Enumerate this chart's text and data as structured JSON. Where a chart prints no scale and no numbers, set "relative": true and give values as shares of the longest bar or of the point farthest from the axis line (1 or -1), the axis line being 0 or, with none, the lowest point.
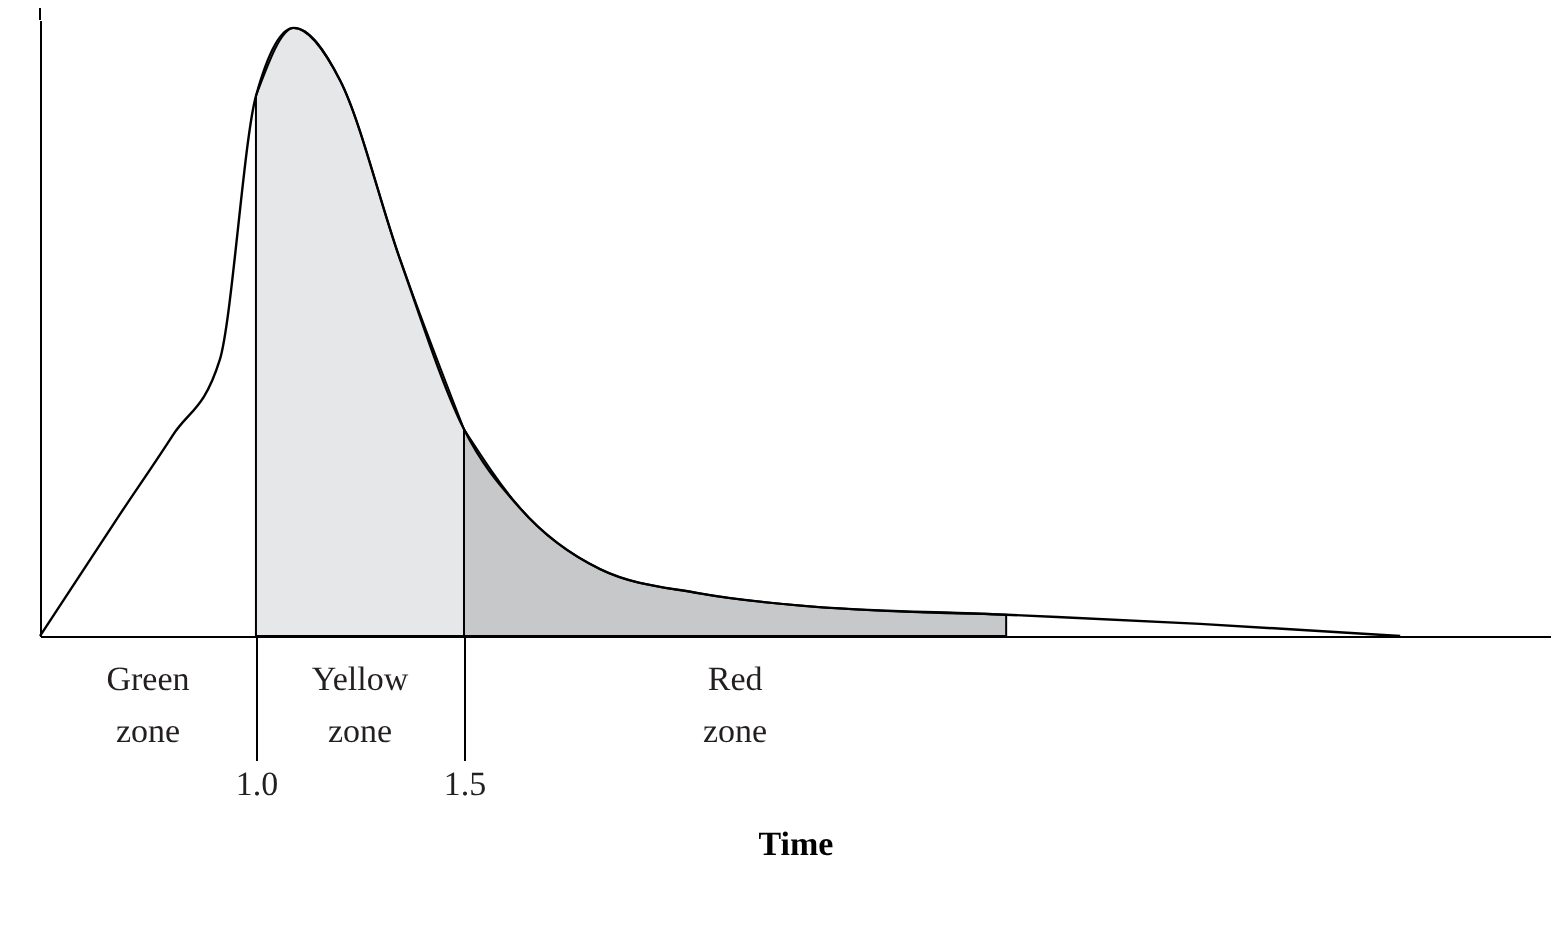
{
  "chart_data": {
    "type": "line",
    "relative": true,
    "xlabel": "Time",
    "x": [
      0.481,
      0.673,
      0.8,
      0.913,
      1.0,
      1.091,
      1.202,
      1.346,
      1.5,
      1.635,
      1.827,
      2.067,
      2.308,
      2.803,
      3.269,
      3.75
    ],
    "series": [
      {
        "type": "area",
        "color": "#e6e7e8",
        "x": [
          1.0,
          1.091,
          1.202,
          1.346,
          1.5
        ],
        "values": [
          0.888,
          1.0,
          0.914,
          0.62,
          0.34
        ]
      },
      {
        "type": "area",
        "color": "#c7c8ca",
        "x": [
          1.5,
          1.635,
          1.827,
          2.067,
          2.308,
          2.803
        ],
        "values": [
          0.34,
          0.21,
          0.11,
          0.07,
          0.05,
          0.035
        ]
      },
      {
        "color": "#000000",
        "values": [
          0,
          0.2,
          0.33,
          0.454,
          0.888,
          1.0,
          0.914,
          0.62,
          0.34,
          0.21,
          0.11,
          0.07,
          0.05,
          0.035,
          0.02,
          0.0
        ]
      }
    ],
    "xlim": [
      0.481,
      4.11
    ],
    "xticks": [
      {
        "value": 1.0,
        "label": "1.0"
      },
      {
        "value": 1.5,
        "label": "1.5"
      }
    ],
    "annotations": [
      "Green zone",
      "Yellow zone",
      "Red zone"
    ],
    "grid": false,
    "marker": "none",
    "line_style": "solid"
  }
}
